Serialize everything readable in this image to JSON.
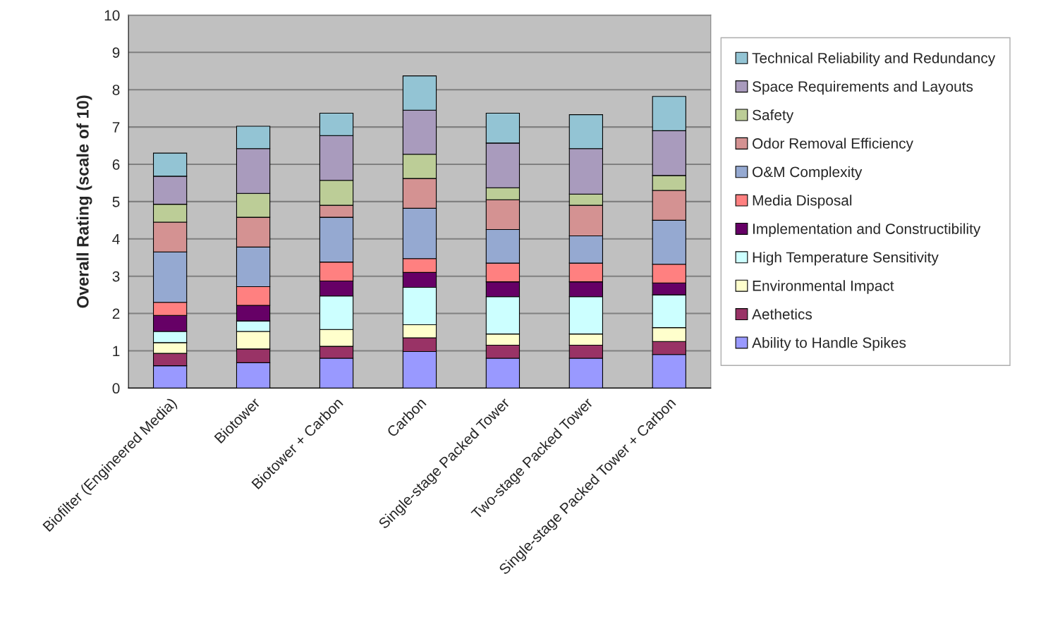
{
  "chart_data": {
    "type": "bar",
    "stacked": true,
    "ylabel": "Overall Rating (scale of 10)",
    "categories": [
      "Biofilter (Engineered Media)",
      "Biotower",
      "Biotower + Carbon",
      "Carbon",
      "Single-stage Packed Tower",
      "Two-stage Packed Tower",
      "Single-stage Packed Tower + Carbon"
    ],
    "series": [
      {
        "name": "Ability to Handle Spikes",
        "color": "#9999ff",
        "values": [
          0.6,
          0.68,
          0.8,
          0.98,
          0.8,
          0.8,
          0.9
        ]
      },
      {
        "name": "Aethetics",
        "color": "#993366",
        "values": [
          0.33,
          0.37,
          0.32,
          0.37,
          0.35,
          0.35,
          0.35
        ]
      },
      {
        "name": "Environmental Impact",
        "color": "#ffffcc",
        "values": [
          0.29,
          0.47,
          0.45,
          0.35,
          0.3,
          0.3,
          0.37
        ]
      },
      {
        "name": "High Temperature Sensitivity",
        "color": "#ccffff",
        "values": [
          0.3,
          0.28,
          0.9,
          1.0,
          1.0,
          1.0,
          0.88
        ]
      },
      {
        "name": "Implementation and Constructibility",
        "color": "#660066",
        "values": [
          0.43,
          0.42,
          0.4,
          0.4,
          0.4,
          0.4,
          0.32
        ]
      },
      {
        "name": "Media Disposal",
        "color": "#ff8080",
        "values": [
          0.35,
          0.5,
          0.51,
          0.37,
          0.5,
          0.5,
          0.5
        ]
      },
      {
        "name": "O&M Complexity",
        "color": "#95a9d1",
        "values": [
          1.35,
          1.06,
          1.2,
          1.35,
          0.9,
          0.73,
          1.18
        ]
      },
      {
        "name": "Odor Removal Efficiency",
        "color": "#d49292",
        "values": [
          0.8,
          0.8,
          0.32,
          0.8,
          0.8,
          0.82,
          0.8
        ]
      },
      {
        "name": "Safety",
        "color": "#bccd97",
        "values": [
          0.48,
          0.64,
          0.67,
          0.65,
          0.32,
          0.3,
          0.4
        ]
      },
      {
        "name": "Space Requirements and Layouts",
        "color": "#a99bbd",
        "values": [
          0.75,
          1.2,
          1.2,
          1.18,
          1.2,
          1.22,
          1.2
        ]
      },
      {
        "name": "Technical Reliability and Redundancy",
        "color": "#93c4d4",
        "values": [
          0.62,
          0.6,
          0.6,
          0.92,
          0.8,
          0.91,
          0.92
        ]
      }
    ],
    "ylim": [
      0,
      10
    ],
    "yticks": [
      0,
      1,
      2,
      3,
      4,
      5,
      6,
      7,
      8,
      9,
      10
    ],
    "grid": "y",
    "legend": "right"
  }
}
